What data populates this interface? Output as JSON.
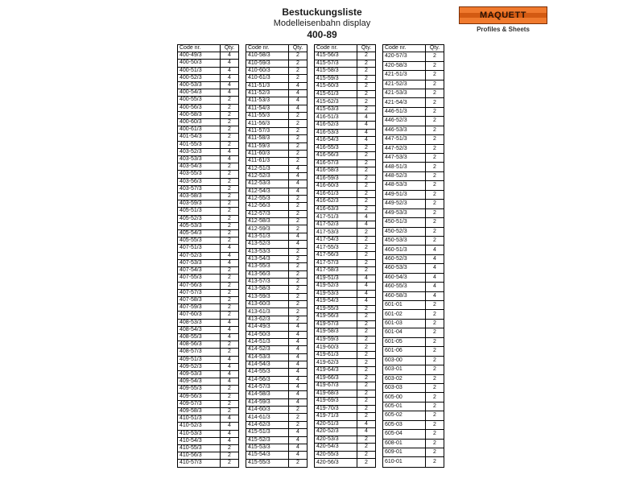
{
  "header": {
    "title": "Bestuckungsliste",
    "subtitle": "Modelleisenbahn display",
    "code": "400-89"
  },
  "logo": {
    "brand": "MAQUETT",
    "tagline": "Profiles & Sheets"
  },
  "tableHeader": {
    "code": "Code nr.",
    "qty": "Qty."
  },
  "columns": [
    [
      [
        "400-49/3",
        4
      ],
      [
        "400-50/3",
        4
      ],
      [
        "400-51/3",
        4
      ],
      [
        "400-52/3",
        4
      ],
      [
        "400-53/3",
        4
      ],
      [
        "400-54/3",
        4
      ],
      [
        "400-55/3",
        2
      ],
      [
        "400-56/3",
        2
      ],
      [
        "400-58/3",
        2
      ],
      [
        "400-60/3",
        2
      ],
      [
        "400-61/3",
        2
      ],
      [
        "401-54/3",
        2
      ],
      [
        "401-55/3",
        2
      ],
      [
        "403-52/3",
        4
      ],
      [
        "403-53/3",
        4
      ],
      [
        "403-54/3",
        2
      ],
      [
        "403-55/3",
        2
      ],
      [
        "403-56/3",
        2
      ],
      [
        "403-57/3",
        2
      ],
      [
        "403-58/3",
        2
      ],
      [
        "403-59/3",
        2
      ],
      [
        "405-51/3",
        2
      ],
      [
        "405-52/3",
        2
      ],
      [
        "405-53/3",
        2
      ],
      [
        "405-54/3",
        2
      ],
      [
        "405-55/3",
        2
      ],
      [
        "407-51/3",
        4
      ],
      [
        "407-52/3",
        4
      ],
      [
        "407-53/3",
        4
      ],
      [
        "407-54/3",
        2
      ],
      [
        "407-55/3",
        2
      ],
      [
        "407-56/3",
        2
      ],
      [
        "407-57/3",
        2
      ],
      [
        "407-58/3",
        2
      ],
      [
        "407-59/3",
        2
      ],
      [
        "407-60/3",
        2
      ],
      [
        "408-53/3",
        4
      ],
      [
        "408-54/3",
        4
      ],
      [
        "408-55/3",
        4
      ],
      [
        "408-56/3",
        2
      ],
      [
        "408-57/3",
        2
      ],
      [
        "409-51/3",
        4
      ],
      [
        "409-52/3",
        4
      ],
      [
        "409-53/3",
        4
      ],
      [
        "409-54/3",
        4
      ],
      [
        "409-55/3",
        2
      ],
      [
        "409-56/3",
        2
      ],
      [
        "409-57/3",
        2
      ],
      [
        "409-58/3",
        2
      ],
      [
        "410-51/3",
        4
      ],
      [
        "410-52/3",
        4
      ],
      [
        "410-53/3",
        4
      ],
      [
        "410-54/3",
        4
      ],
      [
        "410-55/3",
        2
      ],
      [
        "410-56/3",
        2
      ],
      [
        "410-57/3",
        2
      ]
    ],
    [
      [
        "410-58/3",
        2
      ],
      [
        "410-59/3",
        2
      ],
      [
        "410-60/3",
        2
      ],
      [
        "410-61/3",
        2
      ],
      [
        "411-51/3",
        4
      ],
      [
        "411-52/3",
        4
      ],
      [
        "411-53/3",
        4
      ],
      [
        "411-54/3",
        4
      ],
      [
        "411-55/3",
        2
      ],
      [
        "411-56/3",
        2
      ],
      [
        "411-57/3",
        2
      ],
      [
        "411-58/3",
        2
      ],
      [
        "411-59/3",
        2
      ],
      [
        "411-60/3",
        2
      ],
      [
        "411-61/3",
        2
      ],
      [
        "412-51/3",
        4
      ],
      [
        "412-52/3",
        4
      ],
      [
        "412-53/3",
        4
      ],
      [
        "412-54/3",
        4
      ],
      [
        "412-55/3",
        2
      ],
      [
        "412-56/3",
        2
      ],
      [
        "412-57/3",
        2
      ],
      [
        "412-58/3",
        2
      ],
      [
        "412-59/3",
        2
      ],
      [
        "413-51/3",
        4
      ],
      [
        "413-52/3",
        4
      ],
      [
        "413-53/3",
        2
      ],
      [
        "413-54/3",
        2
      ],
      [
        "413-55/3",
        2
      ],
      [
        "413-56/3",
        2
      ],
      [
        "413-57/3",
        2
      ],
      [
        "413-58/3",
        2
      ],
      [
        "413-59/3",
        2
      ],
      [
        "413-60/3",
        2
      ],
      [
        "413-61/3",
        2
      ],
      [
        "413-62/3",
        2
      ],
      [
        "414-49/3",
        4
      ],
      [
        "414-50/3",
        4
      ],
      [
        "414-51/3",
        4
      ],
      [
        "414-52/3",
        4
      ],
      [
        "414-53/3",
        4
      ],
      [
        "414-54/3",
        4
      ],
      [
        "414-55/3",
        4
      ],
      [
        "414-56/3",
        4
      ],
      [
        "414-57/3",
        4
      ],
      [
        "414-58/3",
        4
      ],
      [
        "414-59/3",
        4
      ],
      [
        "414-60/3",
        2
      ],
      [
        "414-61/3",
        2
      ],
      [
        "414-62/3",
        2
      ],
      [
        "415-51/3",
        4
      ],
      [
        "415-52/3",
        4
      ],
      [
        "415-53/3",
        4
      ],
      [
        "415-54/3",
        4
      ],
      [
        "415-55/3",
        2
      ]
    ],
    [
      [
        "415-56/3",
        2
      ],
      [
        "415-57/3",
        2
      ],
      [
        "415-58/3",
        2
      ],
      [
        "415-59/3",
        2
      ],
      [
        "415-60/3",
        2
      ],
      [
        "415-61/3",
        2
      ],
      [
        "415-62/3",
        2
      ],
      [
        "415-63/3",
        2
      ],
      [
        "416-51/3",
        4
      ],
      [
        "416-52/3",
        4
      ],
      [
        "416-53/3",
        4
      ],
      [
        "416-54/3",
        4
      ],
      [
        "416-55/3",
        2
      ],
      [
        "416-56/3",
        2
      ],
      [
        "416-57/3",
        2
      ],
      [
        "416-58/3",
        2
      ],
      [
        "416-59/3",
        2
      ],
      [
        "416-60/3",
        2
      ],
      [
        "416-61/3",
        2
      ],
      [
        "416-62/3",
        2
      ],
      [
        "416-63/3",
        2
      ],
      [
        "417-51/3",
        4
      ],
      [
        "417-52/3",
        4
      ],
      [
        "417-53/3",
        2
      ],
      [
        "417-54/3",
        2
      ],
      [
        "417-55/3",
        2
      ],
      [
        "417-56/3",
        2
      ],
      [
        "417-57/3",
        2
      ],
      [
        "417-58/3",
        2
      ],
      [
        "419-51/3",
        4
      ],
      [
        "419-52/3",
        4
      ],
      [
        "419-53/3",
        4
      ],
      [
        "419-54/3",
        4
      ],
      [
        "419-55/3",
        2
      ],
      [
        "419-56/3",
        2
      ],
      [
        "419-57/3",
        2
      ],
      [
        "419-58/3",
        2
      ],
      [
        "419-59/3",
        2
      ],
      [
        "419-60/3",
        2
      ],
      [
        "419-61/3",
        2
      ],
      [
        "419-62/3",
        2
      ],
      [
        "419-64/3",
        2
      ],
      [
        "419-66/3",
        2
      ],
      [
        "419-67/3",
        2
      ],
      [
        "419-68/3",
        2
      ],
      [
        "419-69/3",
        2
      ],
      [
        "419-70/3",
        2
      ],
      [
        "419-71/3",
        2
      ],
      [
        "420-51/3",
        4
      ],
      [
        "420-52/3",
        4
      ],
      [
        "420-53/3",
        2
      ],
      [
        "420-54/3",
        2
      ],
      [
        "420-55/3",
        2
      ],
      [
        "420-56/3",
        2
      ]
    ],
    [
      [
        "420-57/3",
        2
      ],
      [
        "420-58/3",
        2
      ],
      [
        "421-51/3",
        2
      ],
      [
        "421-52/3",
        2
      ],
      [
        "421-53/3",
        2
      ],
      [
        "421-54/3",
        2
      ],
      [
        "446-51/3",
        2
      ],
      [
        "446-52/3",
        2
      ],
      [
        "446-53/3",
        2
      ],
      [
        "447-51/3",
        2
      ],
      [
        "447-52/3",
        2
      ],
      [
        "447-53/3",
        2
      ],
      [
        "448-51/3",
        2
      ],
      [
        "448-52/3",
        2
      ],
      [
        "448-53/3",
        2
      ],
      [
        "449-51/3",
        2
      ],
      [
        "449-52/3",
        2
      ],
      [
        "449-53/3",
        2
      ],
      [
        "450-51/3",
        2
      ],
      [
        "450-52/3",
        2
      ],
      [
        "450-53/3",
        2
      ],
      [
        "460-51/3",
        4
      ],
      [
        "460-52/3",
        4
      ],
      [
        "460-53/3",
        4
      ],
      [
        "460-54/3",
        4
      ],
      [
        "460-55/3",
        4
      ],
      [
        "460-58/3",
        4
      ],
      [
        "601-01",
        2
      ],
      [
        "601-02",
        2
      ],
      [
        "601-03",
        2
      ],
      [
        "601-04",
        2
      ],
      [
        "601-05",
        2
      ],
      [
        "601-06",
        2
      ],
      [
        "603-00",
        2
      ],
      [
        "603-01",
        2
      ],
      [
        "603-02",
        2
      ],
      [
        "603-03",
        2
      ],
      [
        "605-00",
        2
      ],
      [
        "605-01",
        2
      ],
      [
        "605-02",
        2
      ],
      [
        "605-03",
        2
      ],
      [
        "605-04",
        2
      ],
      [
        "608-01",
        2
      ],
      [
        "609-01",
        2
      ],
      [
        "610-01",
        2
      ]
    ]
  ]
}
